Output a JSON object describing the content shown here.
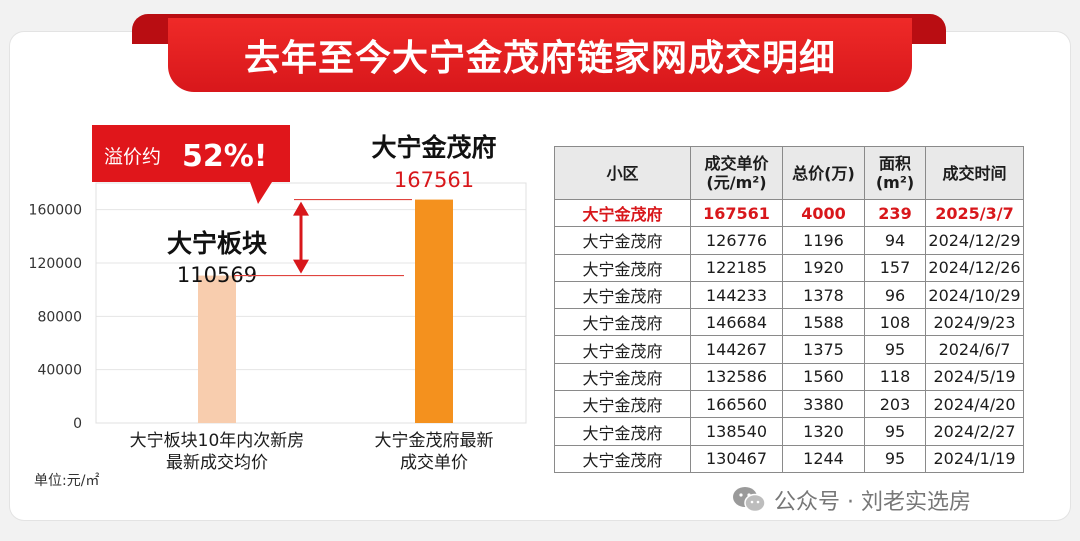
{
  "header": {
    "title": "去年至今大宁金茂府链家网成交明细"
  },
  "chart_data": {
    "type": "bar",
    "categories": [
      "大宁板块10年内次新房\n最新成交均价",
      "大宁金茂府最新\n成交单价"
    ],
    "values": [
      110569,
      167561
    ],
    "colors": [
      "#f8cdae",
      "#f4911e"
    ],
    "ylim": [
      0,
      180000
    ],
    "yticks": [
      0,
      40000,
      80000,
      120000,
      160000
    ],
    "bar_titles": [
      "大宁板块",
      "大宁金茂府"
    ],
    "data_labels": [
      "110569",
      "167561"
    ],
    "callout": {
      "prefix": "溢价约",
      "value": "52%!"
    },
    "unit_label": "单位:元/㎡"
  },
  "table": {
    "headers": [
      "小区",
      "成交单价\n(元/m²)",
      "总价(万)",
      "面积(m²)",
      "成交时间"
    ],
    "rows": [
      [
        "大宁金茂府",
        "167561",
        "4000",
        "239",
        "2025/3/7"
      ],
      [
        "大宁金茂府",
        "126776",
        "1196",
        "94",
        "2024/12/29"
      ],
      [
        "大宁金茂府",
        "122185",
        "1920",
        "157",
        "2024/12/26"
      ],
      [
        "大宁金茂府",
        "144233",
        "1378",
        "96",
        "2024/10/29"
      ],
      [
        "大宁金茂府",
        "146684",
        "1588",
        "108",
        "2024/9/23"
      ],
      [
        "大宁金茂府",
        "144267",
        "1375",
        "95",
        "2024/6/7"
      ],
      [
        "大宁金茂府",
        "132586",
        "1560",
        "118",
        "2024/5/19"
      ],
      [
        "大宁金茂府",
        "166560",
        "3380",
        "203",
        "2024/4/20"
      ],
      [
        "大宁金茂府",
        "138540",
        "1320",
        "95",
        "2024/2/27"
      ],
      [
        "大宁金茂府",
        "130467",
        "1244",
        "95",
        "2024/1/19"
      ]
    ],
    "highlight_row": 0,
    "highlight_color": "#d8171b"
  },
  "watermark": {
    "text": "公众号 · 刘老实选房",
    "icon": "wechat-icon"
  }
}
